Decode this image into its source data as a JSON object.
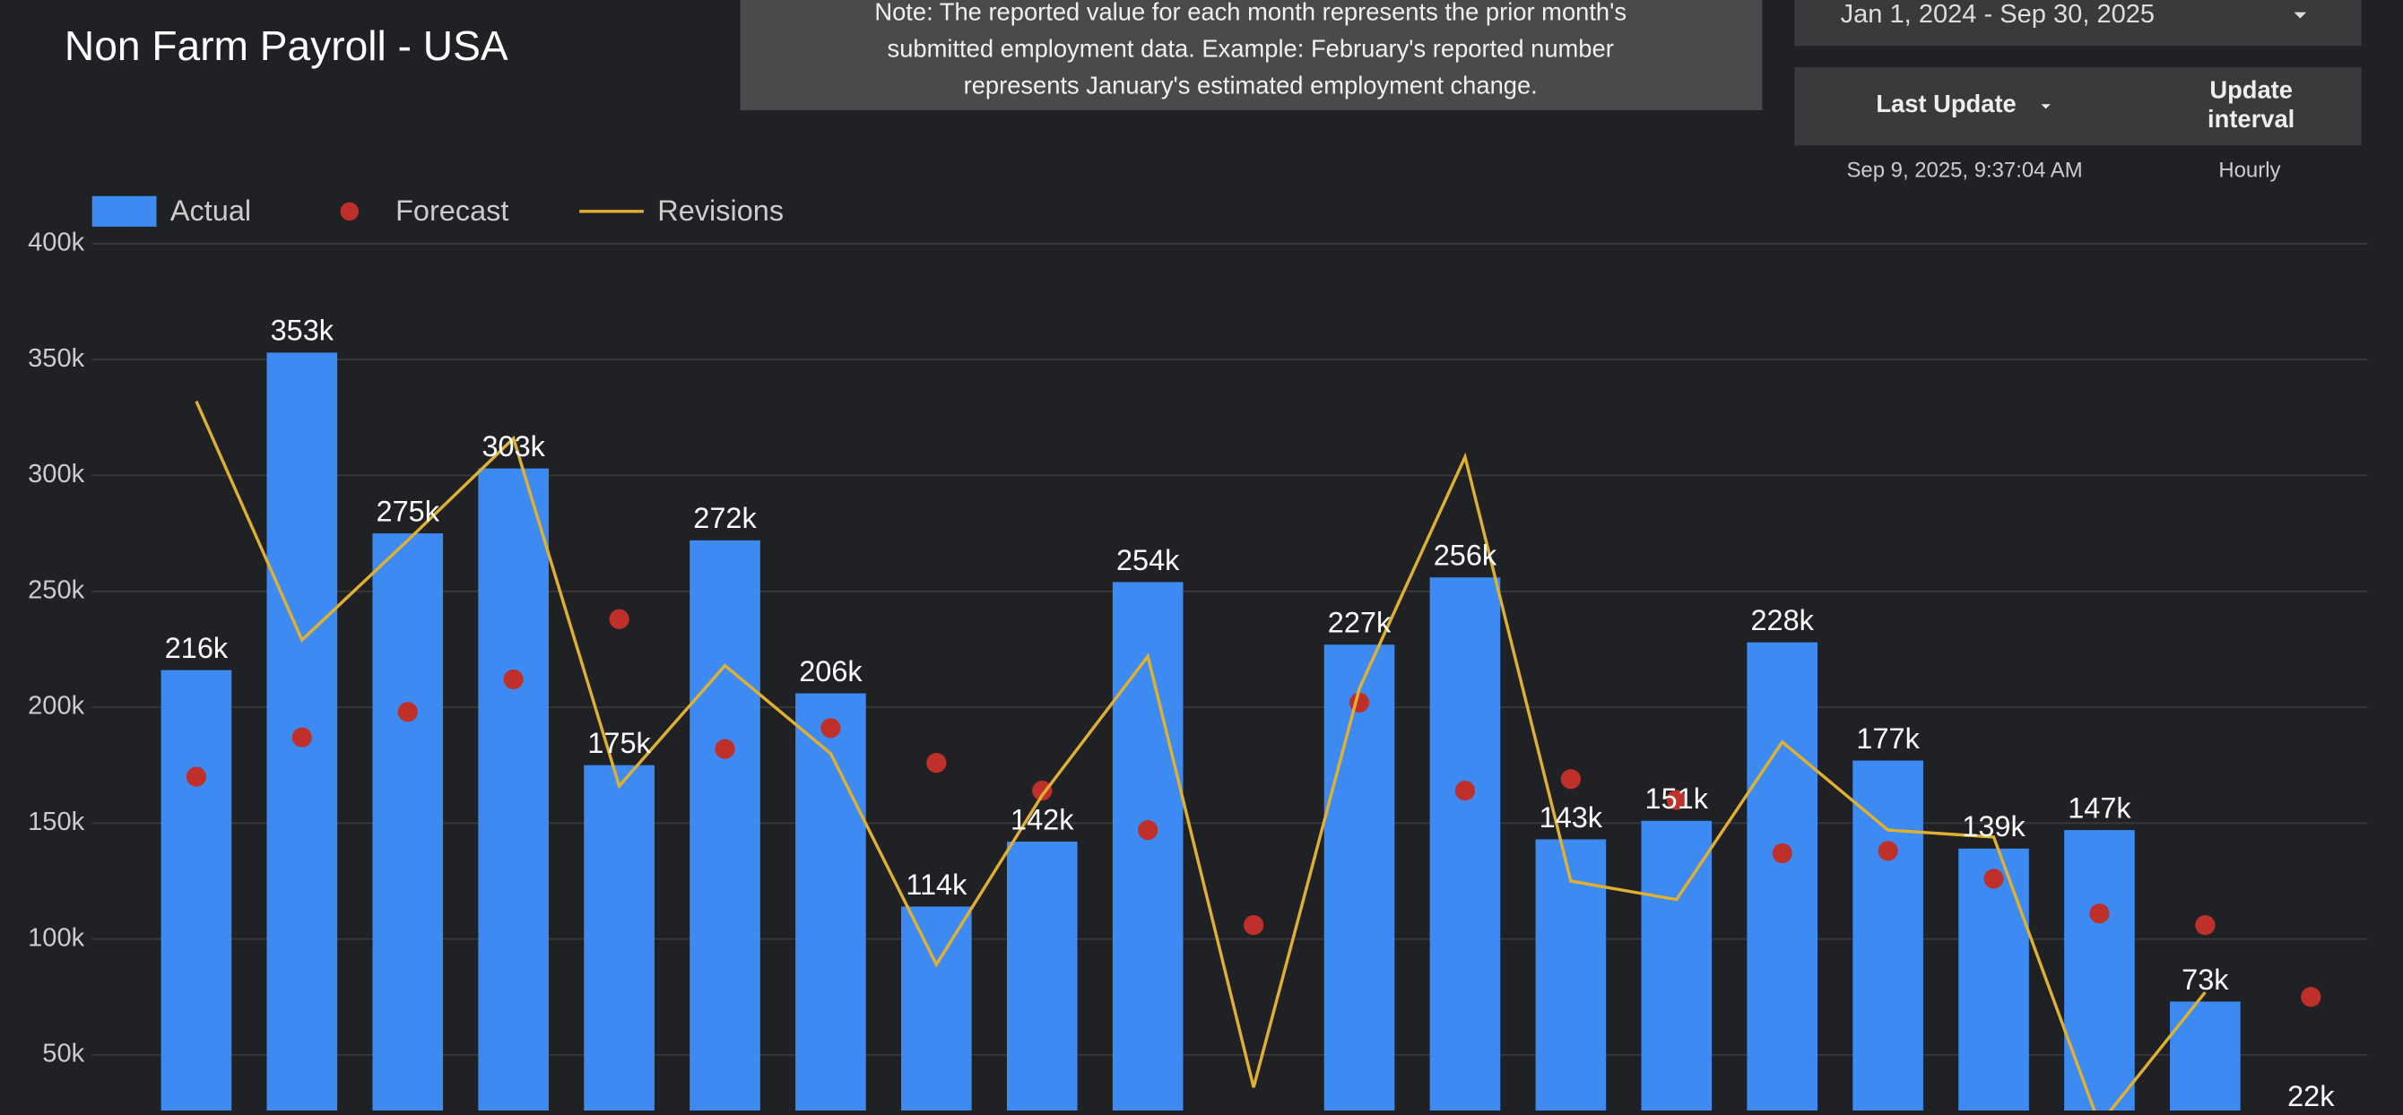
{
  "chart_data": {
    "type": "bar",
    "title": "Non Farm Payroll - USA",
    "categories": [
      null,
      null,
      null,
      null,
      null,
      null,
      null,
      null,
      null,
      null,
      null,
      null,
      null,
      null,
      null,
      null,
      null,
      null,
      null,
      null,
      null
    ],
    "series": [
      {
        "name": "Actual",
        "type": "bar",
        "color": "#3d8bf2",
        "values": [
          216000,
          353000,
          275000,
          303000,
          175000,
          272000,
          206000,
          114000,
          142000,
          254000,
          null,
          227000,
          256000,
          143000,
          151000,
          228000,
          177000,
          139000,
          147000,
          73000,
          22000
        ],
        "value_labels": [
          "216k",
          "353k",
          "275k",
          "303k",
          "175k",
          "272k",
          "206k",
          "114k",
          "142k",
          "254k",
          null,
          "227k",
          "256k",
          "143k",
          "151k",
          "228k",
          "177k",
          "139k",
          "147k",
          "73k",
          "22k"
        ]
      },
      {
        "name": "Forecast",
        "type": "scatter",
        "color": "#c0302b",
        "values": [
          170000,
          187000,
          198000,
          212000,
          238000,
          182000,
          191000,
          176000,
          164000,
          147000,
          106000,
          202000,
          164000,
          169000,
          160000,
          137000,
          138000,
          126000,
          111000,
          106000,
          75000
        ]
      },
      {
        "name": "Revisions",
        "type": "line",
        "color": "#e0b030",
        "values": [
          332000,
          229000,
          272000,
          316000,
          166000,
          218000,
          180000,
          89000,
          162000,
          222000,
          36000,
          208000,
          308000,
          125000,
          117000,
          185000,
          147000,
          144000,
          20000,
          77000,
          null
        ]
      }
    ],
    "ylim": [
      26000,
      406000
    ],
    "yticks": [
      {
        "value": 50000,
        "label": "50k"
      },
      {
        "value": 100000,
        "label": "100k"
      },
      {
        "value": 150000,
        "label": "150k"
      },
      {
        "value": 200000,
        "label": "200k"
      },
      {
        "value": 250000,
        "label": "250k"
      },
      {
        "value": 300000,
        "label": "300k"
      },
      {
        "value": 350000,
        "label": "350k"
      },
      {
        "value": 400000,
        "label": "400k"
      }
    ],
    "grid": true
  },
  "header": {
    "note": [
      "Note: The reported value for each month represents the prior month's",
      "submitted employment data. Example: February's reported number",
      "represents January's estimated employment change."
    ],
    "date_range": "Jan 1, 2024 - Sep 30, 2025",
    "last_update_label": "Last Update",
    "update_interval_label": [
      "Update",
      "interval"
    ],
    "last_update": "Sep 9, 2025, 9:37:04 AM",
    "update_interval": "Hourly"
  }
}
